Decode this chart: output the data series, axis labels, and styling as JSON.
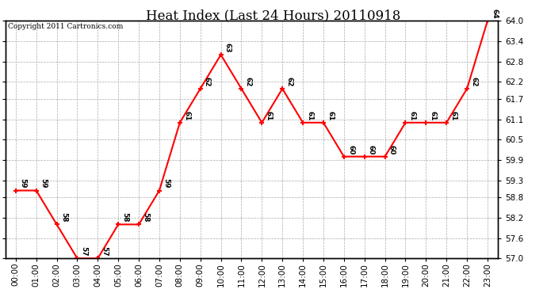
{
  "title": "Heat Index (Last 24 Hours) 20110918",
  "copyright_text": "Copyright 2011 Cartronics.com",
  "hours": [
    "00:00",
    "01:00",
    "02:00",
    "03:00",
    "04:00",
    "05:00",
    "06:00",
    "07:00",
    "08:00",
    "09:00",
    "10:00",
    "11:00",
    "12:00",
    "13:00",
    "14:00",
    "15:00",
    "16:00",
    "17:00",
    "18:00",
    "19:00",
    "20:00",
    "21:00",
    "22:00",
    "23:00"
  ],
  "values": [
    59,
    59,
    58,
    57,
    57,
    58,
    58,
    59,
    61,
    62,
    63,
    62,
    61,
    62,
    61,
    61,
    60,
    60,
    60,
    61,
    61,
    61,
    62,
    64
  ],
  "ylim": [
    57.0,
    64.0
  ],
  "yticks": [
    57.0,
    57.6,
    58.2,
    58.8,
    59.3,
    59.9,
    60.5,
    61.1,
    61.7,
    62.2,
    62.8,
    63.4,
    64.0
  ],
  "line_color": "red",
  "marker_color": "red",
  "background_color": "white",
  "grid_color": "#aaaaaa",
  "title_fontsize": 12,
  "label_fontsize": 7.5,
  "annotation_fontsize": 6.5,
  "copyright_fontsize": 6.5
}
